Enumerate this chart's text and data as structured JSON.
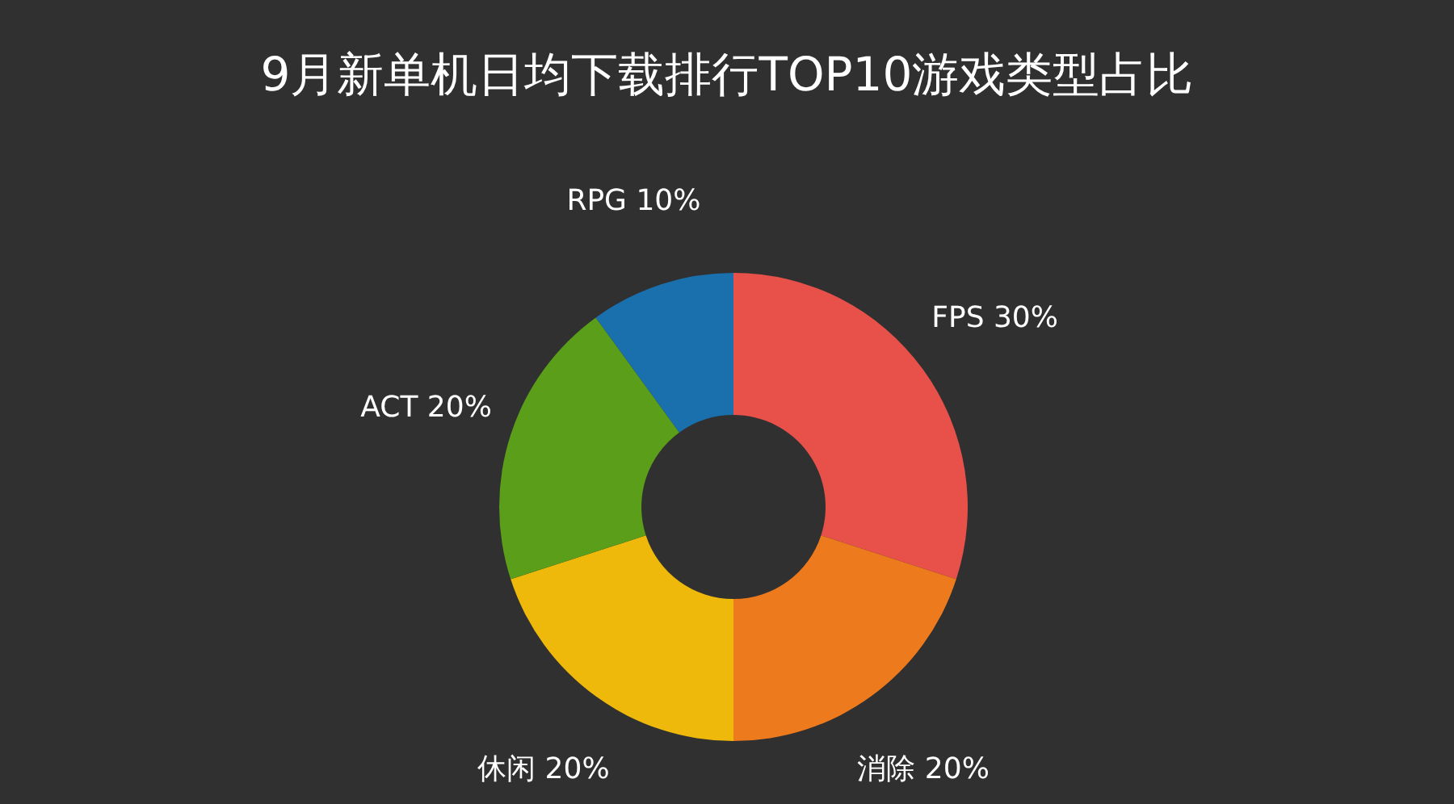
{
  "chart_data": {
    "type": "donut",
    "title": "9月新单机日均下载排行TOP10游戏类型占比",
    "categories": [
      "FPS",
      "消除",
      "休闲",
      "ACT",
      "RPG"
    ],
    "values": [
      30,
      20,
      20,
      20,
      10
    ],
    "value_labels": [
      "30%",
      "20%",
      "20%",
      "20%",
      "10%"
    ],
    "colors": [
      "#e8504a",
      "#ee7a1e",
      "#efb90c",
      "#5a9e1a",
      "#1a6fad"
    ]
  }
}
